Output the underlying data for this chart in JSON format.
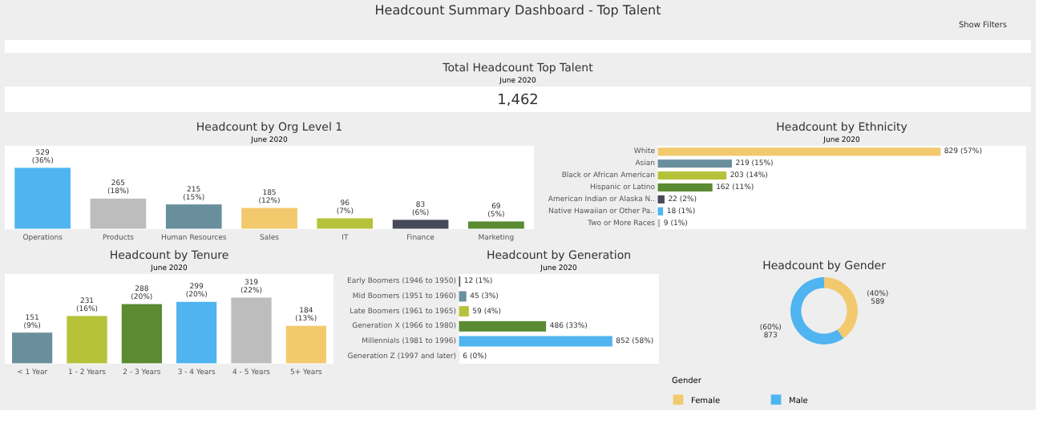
{
  "chart_data": [
    {
      "type": "other",
      "title": "Headcount Summary Dashboard - Top Talent",
      "annotations": [
        "Show Filters"
      ]
    },
    {
      "type": "other",
      "title": "Total Headcount Top Talent",
      "subtitle": "June 2020",
      "annotations": [
        "1,462"
      ]
    },
    {
      "type": "bar",
      "title": "Headcount by Org Level 1",
      "subtitle": "June 2020",
      "categories": [
        "Operations",
        "Products",
        "Human Resources",
        "Sales",
        "IT",
        "Finance",
        "Marketing"
      ],
      "values": [
        529,
        265,
        215,
        185,
        96,
        83,
        69
      ],
      "colors": [
        "#4fb4f0",
        "#bdbdbd",
        "#6a8f9c",
        "#f2c96d",
        "#b5c23a",
        "#474a5a",
        "#5a8a32"
      ],
      "value_labels": [
        "529 (36%)",
        "265 (18%)",
        "215 (15%)",
        "185 (12%)",
        "96 (7%)",
        "83 (6%)",
        "69 (5%)"
      ]
    },
    {
      "type": "bar",
      "orientation": "horizontal",
      "title": "Headcount by Ethnicity",
      "subtitle": "June 2020",
      "categories": [
        "White",
        "Asian",
        "Black or African American",
        "Hispanic or Latino",
        "American Indian or Alaska N..",
        "Native Hawaiian or Other Pa..",
        "Two or More Races"
      ],
      "values": [
        829,
        219,
        203,
        162,
        22,
        18,
        9
      ],
      "colors": [
        "#f2c96d",
        "#6a8f9c",
        "#b5c23a",
        "#5a8a32",
        "#474a5a",
        "#4fb4f0",
        "#bdbdbd"
      ],
      "value_labels": [
        "829 (57%)",
        "219 (15%)",
        "203 (14%)",
        "162 (11%)",
        "22 (2%)",
        "18 (1%)",
        "9 (1%)"
      ]
    },
    {
      "type": "bar",
      "title": "Headcount by Tenure",
      "subtitle": "June 2020",
      "categories": [
        "< 1 Year",
        "1 - 2 Years",
        "2 - 3 Years",
        "3 - 4 Years",
        "4 - 5 Years",
        "5+ Years"
      ],
      "values": [
        151,
        231,
        288,
        299,
        319,
        184
      ],
      "colors": [
        "#6a8f9c",
        "#b5c23a",
        "#5a8a32",
        "#4fb4f0",
        "#bdbdbd",
        "#f2c96d"
      ],
      "value_labels": [
        "151 (9%)",
        "231 (16%)",
        "288 (20%)",
        "299 (20%)",
        "319 (22%)",
        "184 (13%)"
      ]
    },
    {
      "type": "bar",
      "orientation": "horizontal",
      "title": "Headcount by Generation",
      "subtitle": "June 2020",
      "categories": [
        "Early Boomers (1946 to 1950)",
        "Mid Boomers (1951 to 1960)",
        "Late Boomers (1961 to 1965)",
        "Generation X (1966 to 1980)",
        "Millennials (1981 to 1996)",
        "Generation Z (1997 and later)"
      ],
      "values": [
        12,
        45,
        59,
        486,
        852,
        6
      ],
      "colors": [
        "#474a5a",
        "#6a8f9c",
        "#b5c23a",
        "#5a8a32",
        "#4fb4f0",
        "#bdbdbd"
      ],
      "value_labels": [
        "12 (1%)",
        "45 (3%)",
        "59 (4%)",
        "486 (33%)",
        "852 (58%)",
        "6 (0%)"
      ]
    },
    {
      "type": "donut",
      "title": "Headcount by Gender",
      "categories": [
        "Female",
        "Male"
      ],
      "values": [
        589,
        873
      ],
      "colors": [
        "#f2c96d",
        "#4fb4f0"
      ],
      "value_labels": [
        "(40%) 589",
        "(60%) 873"
      ],
      "legend": "bottom",
      "legend_title": "Gender"
    }
  ]
}
